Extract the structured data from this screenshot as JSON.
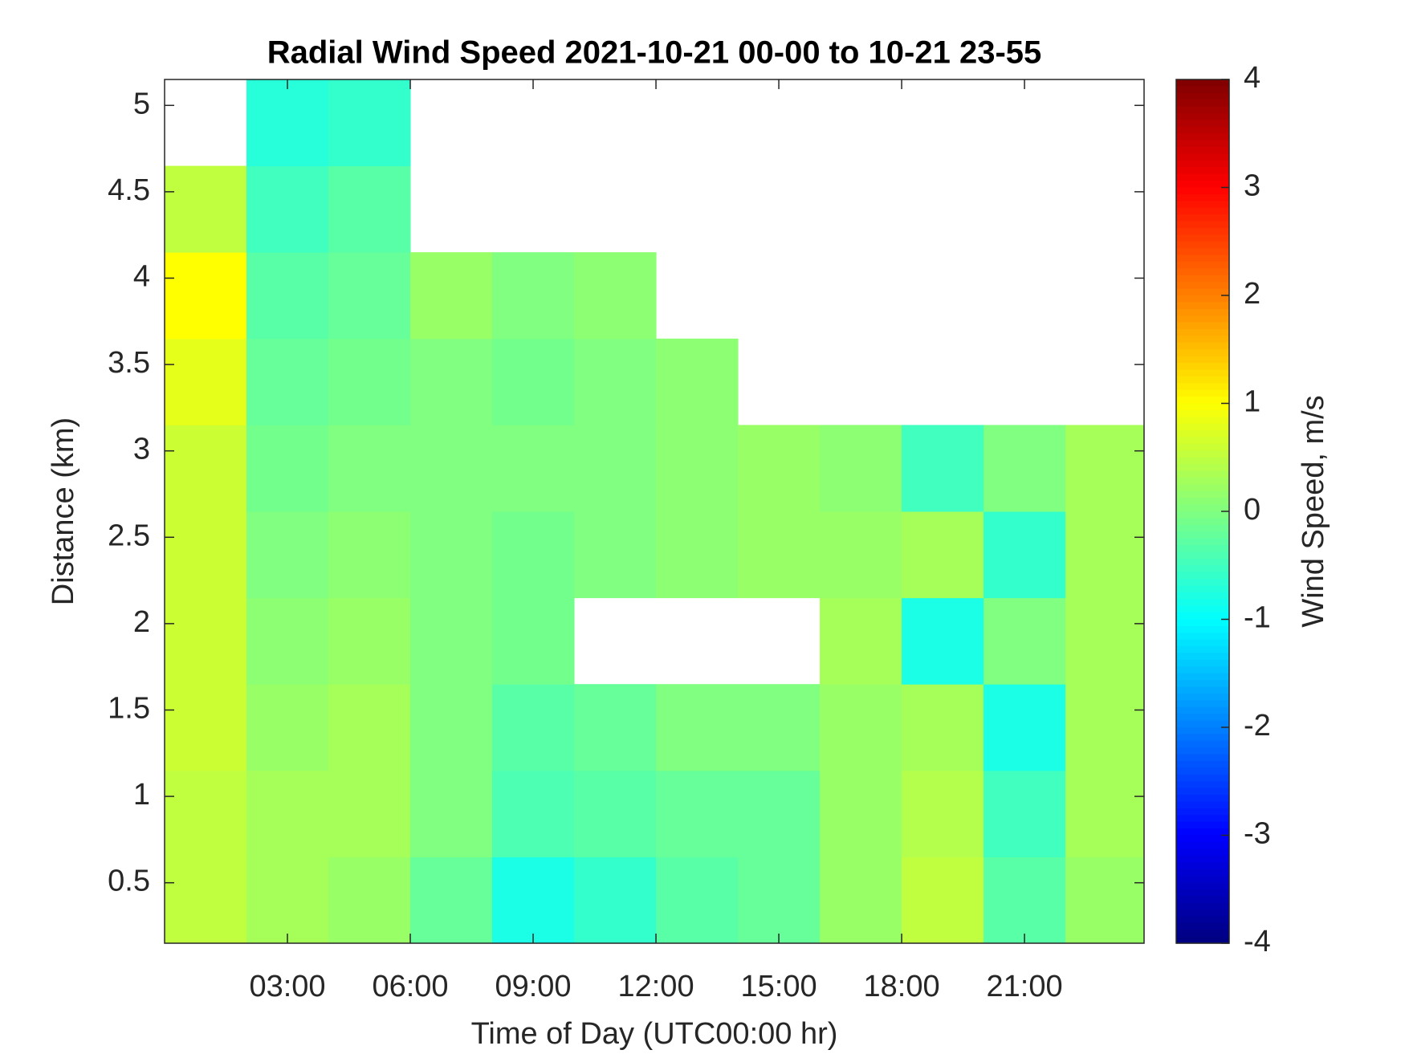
{
  "chart_data": {
    "type": "heatmap",
    "title": "Radial Wind Speed 2021-10-21 00-00 to 10-21 23-55",
    "xlabel": "Time of Day (UTC00:00 hr)",
    "ylabel": "Distance (km)",
    "colorbar_label": "Wind Speed, m/s",
    "colormap": "jet",
    "x": [
      1,
      3,
      5,
      7,
      9,
      11,
      13,
      15,
      17,
      19,
      21,
      23
    ],
    "y": [
      0.4,
      0.9,
      1.4,
      1.9,
      2.4,
      2.9,
      3.4,
      3.9,
      4.4,
      4.9
    ],
    "z": [
      [
        0.5,
        0.3,
        0.2,
        -0.2,
        -0.8,
        -0.6,
        -0.3,
        -0.2,
        0.2,
        0.5,
        -0.3,
        0.2
      ],
      [
        0.5,
        0.3,
        0.3,
        0,
        -0.4,
        -0.3,
        -0.2,
        -0.2,
        0.2,
        0.4,
        -0.5,
        0.3
      ],
      [
        0.6,
        0.2,
        0.3,
        0,
        -0.3,
        -0.2,
        0,
        0,
        0.2,
        0.3,
        -0.8,
        0.3
      ],
      [
        0.6,
        0.1,
        0.2,
        0,
        -0.1,
        null,
        null,
        null,
        0.3,
        -0.8,
        0,
        0.3
      ],
      [
        0.6,
        0,
        0.1,
        0,
        -0.1,
        0,
        0.1,
        0.2,
        0.2,
        0.3,
        -0.6,
        0.3
      ],
      [
        0.6,
        -0.1,
        0,
        0,
        0,
        0,
        0.1,
        0.2,
        0.1,
        -0.5,
        0,
        0.3
      ],
      [
        0.8,
        -0.2,
        -0.1,
        0,
        -0.1,
        0,
        0.1,
        null,
        null,
        null,
        null,
        null
      ],
      [
        1.0,
        -0.3,
        -0.2,
        0.2,
        0,
        0.1,
        null,
        null,
        null,
        null,
        null,
        null
      ],
      [
        0.5,
        -0.5,
        -0.3,
        null,
        null,
        null,
        null,
        null,
        null,
        null,
        null,
        null
      ],
      [
        null,
        -0.7,
        -0.6,
        null,
        null,
        null,
        null,
        null,
        null,
        null,
        null,
        null
      ]
    ],
    "xlim": [
      0,
      23.92
    ],
    "ylim": [
      0.15,
      5.15
    ],
    "xticks": [
      {
        "value": 3,
        "label": "03:00"
      },
      {
        "value": 6,
        "label": "06:00"
      },
      {
        "value": 9,
        "label": "09:00"
      },
      {
        "value": 12,
        "label": "12:00"
      },
      {
        "value": 15,
        "label": "15:00"
      },
      {
        "value": 18,
        "label": "18:00"
      },
      {
        "value": 21,
        "label": "21:00"
      }
    ],
    "yticks": [
      0.5,
      1,
      1.5,
      2,
      2.5,
      3,
      3.5,
      4,
      4.5,
      5
    ],
    "clim": [
      -4,
      4
    ],
    "cticks": [
      -4,
      -3,
      -2,
      -1,
      0,
      1,
      2,
      3,
      4
    ]
  }
}
